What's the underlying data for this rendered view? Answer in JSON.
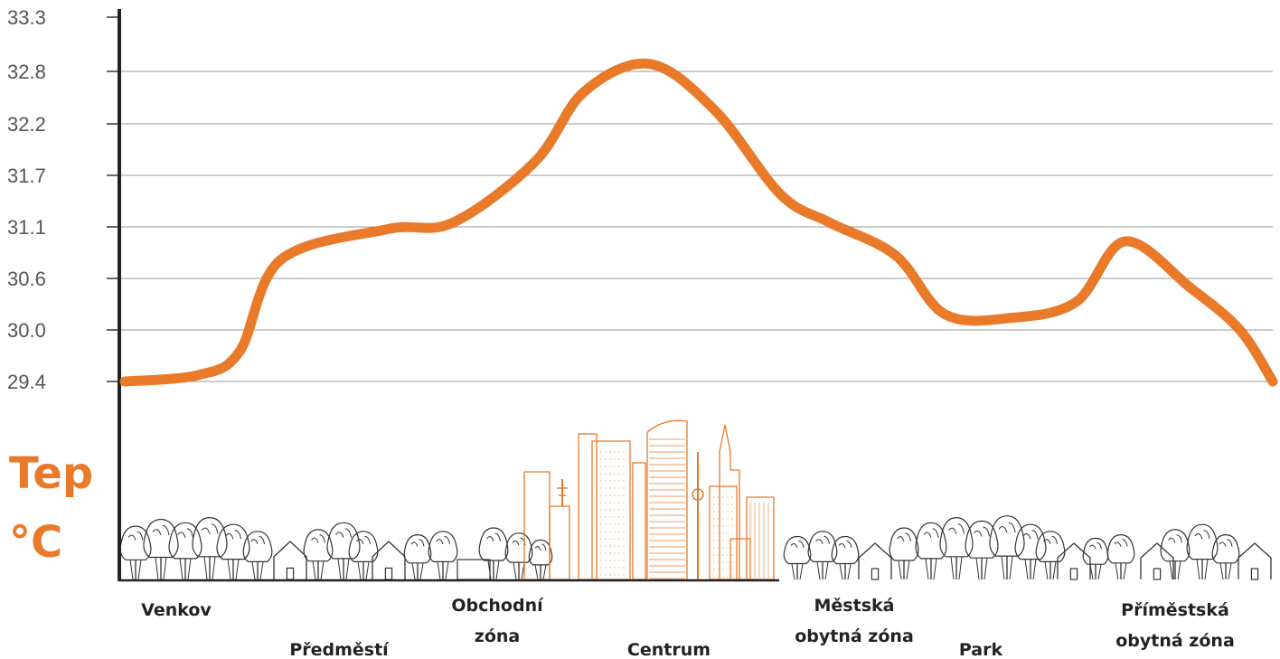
{
  "chart_data": {
    "type": "line",
    "ylabel_lines": [
      "Tep",
      "°C"
    ],
    "ylim": [
      29.4,
      33.3
    ],
    "yticks": [
      "33.3",
      "32.8",
      "32.2",
      "31.7",
      "31.1",
      "30.6",
      "30.0",
      "29.4"
    ],
    "grid": true,
    "line_color": "#E87A2A",
    "illustration_color": "#E87A2A",
    "categories": [
      [
        "Venkov"
      ],
      [
        "Předměstí"
      ],
      [
        "Obchodní",
        "zóna"
      ],
      [
        "Centrum"
      ],
      [
        "Městská",
        "obytná zóna"
      ],
      [
        "Park"
      ],
      [
        "Příměstská",
        "obytná zóna"
      ]
    ],
    "series": [
      {
        "x": [
          0,
          0.45,
          0.7,
          0.95,
          1.6,
          2.0,
          2.5,
          2.8,
          3.2,
          3.6,
          4.0,
          4.3,
          4.7,
          5.0,
          5.4,
          5.8,
          6.1
        ],
        "values": [
          29.4,
          29.47,
          29.72,
          30.7,
          31.03,
          31.1,
          31.75,
          32.5,
          32.8,
          32.3,
          31.4,
          31.1,
          30.75,
          30.12,
          30.08,
          30.25,
          30.9
        ]
      }
    ],
    "series_tail": [
      30.4,
      29.95,
      29.4
    ]
  }
}
